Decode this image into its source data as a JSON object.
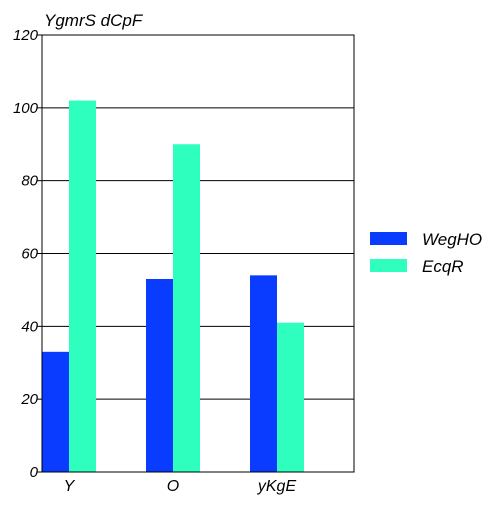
{
  "chart_data": {
    "type": "bar",
    "title": "YgmrS dCpF",
    "xlabel": "",
    "ylabel": "",
    "categories": [
      "Y",
      "O",
      "yKgE"
    ],
    "series": [
      {
        "name": "WegHO",
        "values": [
          33,
          53,
          54
        ],
        "color": "#0a3cff"
      },
      {
        "name": "EcqR",
        "values": [
          102,
          90,
          41
        ],
        "color": "#2fffbe"
      }
    ],
    "ylim": [
      0,
      120
    ],
    "yticks": [
      0,
      20,
      40,
      60,
      80,
      100,
      120
    ],
    "grid": true,
    "legend_position": "right"
  }
}
